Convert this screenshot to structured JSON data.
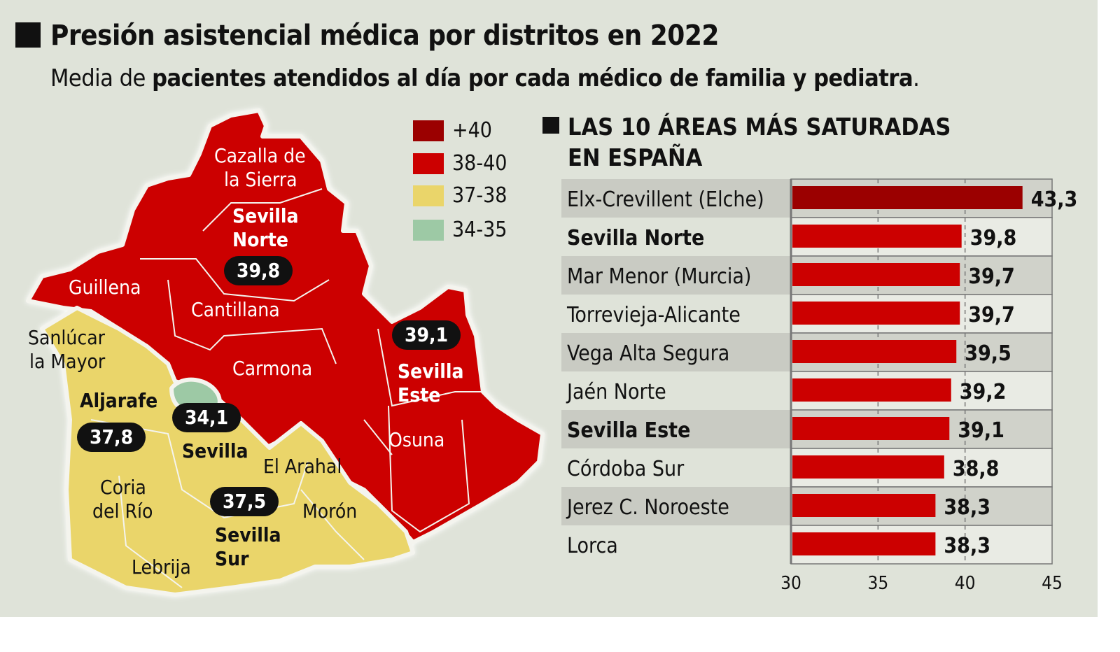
{
  "header": {
    "title": "Presión asistencial médica por distritos en 2022",
    "subtitle_pre": "Media de ",
    "subtitle_bold": "pacientes atendidos al día por cada médico de familia y pediatra",
    "subtitle_post": "."
  },
  "map": {
    "legend": [
      {
        "label": "+40",
        "color": "#9b0000"
      },
      {
        "label": "38-40",
        "color": "#cc0000"
      },
      {
        "label": "37-38",
        "color": "#ead56a"
      },
      {
        "label": "34-35",
        "color": "#9dc9a5"
      }
    ],
    "place_labels": [
      "Cazalla de",
      "la Sierra",
      "Guillena",
      "Cantillana",
      "Carmona",
      "Sanlúcar",
      "la Mayor",
      "Osuna",
      "El Arahal",
      "Coria",
      "del Río",
      "Morón",
      "Lebrija"
    ],
    "districts": [
      {
        "name": "Sevilla Norte",
        "line1": "Sevilla",
        "line2": "Norte",
        "value": "39,8"
      },
      {
        "name": "Sevilla Este",
        "line1": "Sevilla",
        "line2": "Este",
        "value": "39,1"
      },
      {
        "name": "Aljarafe",
        "line1": "Aljarafe",
        "value": "37,8"
      },
      {
        "name": "Sevilla",
        "line1": "Sevilla",
        "value": "34,1"
      },
      {
        "name": "Sevilla Sur",
        "line1": "Sevilla",
        "line2": "Sur",
        "value": "37,5"
      }
    ]
  },
  "chart_data": {
    "type": "bar",
    "orientation": "horizontal",
    "title_line1": "LAS 10 ÁREAS MÁS SATURADAS",
    "title_line2": "EN ESPAÑA",
    "categories": [
      "Elx-Crevillent (Elche)",
      "Sevilla Norte",
      "Mar Menor (Murcia)",
      "Torrevieja-Alicante",
      "Vega Alta Segura",
      "Jaén Norte",
      "Sevilla Este",
      "Córdoba Sur",
      "Jerez C. Noroeste",
      "Lorca"
    ],
    "values": [
      43.3,
      39.8,
      39.7,
      39.7,
      39.5,
      39.2,
      39.1,
      38.8,
      38.3,
      38.3
    ],
    "value_labels": [
      "43,3",
      "39,8",
      "39,7",
      "39,7",
      "39,5",
      "39,2",
      "39,1",
      "38,8",
      "38,3",
      "38,3"
    ],
    "bold_categories": [
      "Sevilla Norte",
      "Sevilla Este"
    ],
    "bar_colors": [
      "#9b0000",
      "#cc0000",
      "#cc0000",
      "#cc0000",
      "#cc0000",
      "#cc0000",
      "#cc0000",
      "#cc0000",
      "#cc0000",
      "#cc0000"
    ],
    "xlim": [
      30,
      45
    ],
    "xticks": [
      "30",
      "35",
      "40",
      "45"
    ],
    "grid": "vertical dashed"
  }
}
